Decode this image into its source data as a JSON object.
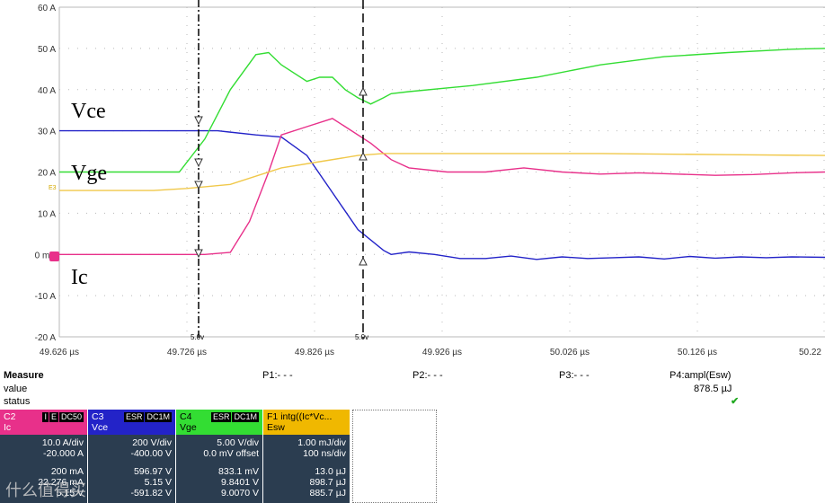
{
  "chart_data": {
    "type": "line",
    "xlabel": "",
    "ylabel": "",
    "x_ticks": [
      "49.626 µs",
      "49.726 µs",
      "49.826 µs",
      "49.926 µs",
      "50.026 µs",
      "50.126 µs",
      "50.22"
    ],
    "y_ticks": [
      "60 A",
      "50 A",
      "40 A",
      "30 A",
      "20 A",
      "10 A",
      "0 mA",
      "-10 A",
      "-20 A"
    ],
    "xlim": [
      49.626,
      50.226
    ],
    "ylim": [
      -20,
      60
    ],
    "grid": true,
    "series": [
      {
        "name": "Vce",
        "color": "#2323c8",
        "x": [
          49.626,
          49.7,
          49.75,
          49.78,
          49.8,
          49.82,
          49.84,
          49.86,
          49.88,
          49.886,
          49.9,
          49.92,
          49.94,
          49.96,
          49.98,
          50.0,
          50.02,
          50.04,
          50.06,
          50.08,
          50.1,
          50.12,
          50.14,
          50.16,
          50.18,
          50.2,
          50.226
        ],
        "y": [
          30,
          30,
          30,
          29,
          28.5,
          24,
          15,
          6,
          1,
          0,
          0.6,
          0,
          -1,
          -1,
          -0.4,
          -1.2,
          -0.6,
          -1,
          -0.8,
          -0.6,
          -1.1,
          -0.5,
          -0.9,
          -0.6,
          -0.8,
          -0.6,
          -0.7
        ]
      },
      {
        "name": "Vge",
        "color": "#33dd33",
        "x": [
          49.626,
          49.7,
          49.72,
          49.74,
          49.76,
          49.78,
          49.79,
          49.8,
          49.82,
          49.83,
          49.84,
          49.85,
          49.86,
          49.87,
          49.88,
          49.886,
          49.9,
          49.95,
          50.0,
          50.05,
          50.1,
          50.15,
          50.2,
          50.226
        ],
        "y": [
          20,
          20,
          20,
          28,
          40,
          48.5,
          49,
          46,
          42,
          43,
          43,
          40,
          38,
          36.5,
          38,
          39,
          39.5,
          41,
          43,
          46,
          48,
          49,
          49.8,
          50
        ]
      },
      {
        "name": "Ic",
        "color": "#e8308a",
        "x": [
          49.626,
          49.7,
          49.74,
          49.76,
          49.775,
          49.79,
          49.8,
          49.82,
          49.84,
          49.85,
          49.87,
          49.886,
          49.9,
          49.93,
          49.96,
          49.99,
          50.02,
          50.05,
          50.08,
          50.11,
          50.14,
          50.17,
          50.2,
          50.226
        ],
        "y": [
          0,
          0,
          0,
          0.5,
          8,
          20,
          29,
          31,
          33,
          31,
          27,
          23,
          21,
          20,
          20,
          21,
          20,
          19.5,
          19.8,
          19.5,
          19.2,
          19.4,
          19.8,
          20
        ]
      },
      {
        "name": "Esw",
        "color": "#f0c84a",
        "x": [
          49.626,
          49.7,
          49.726,
          49.76,
          49.8,
          49.83,
          49.86,
          49.88,
          49.886,
          49.95,
          50.05,
          50.15,
          50.226
        ],
        "y": [
          15.5,
          15.5,
          16,
          17,
          21,
          22.5,
          24,
          24.5,
          24.5,
          24.5,
          24.5,
          24.2,
          24
        ]
      }
    ],
    "annotations": [
      "Vce",
      "Vge",
      "Ic",
      "E3"
    ],
    "cursor_labels": [
      "5.0v",
      "5.0v"
    ]
  },
  "measure": {
    "title": "Measure",
    "row_value": "value",
    "row_status": "status",
    "p1": "P1:- - -",
    "p2": "P2:- - -",
    "p3": "P3:- - -",
    "p4": "P4:ampl(Esw)",
    "p4_value": "878.5 µJ",
    "p4_status": "✔"
  },
  "channels": [
    {
      "id": "C2",
      "name": "Ic",
      "badges": [
        "I",
        "E",
        "DC50"
      ],
      "color": "#e8308a",
      "lines": [
        "10.0 A/div",
        "-20.000 A",
        "200 mA",
        "22.276 mA",
        "5.15 V"
      ]
    },
    {
      "id": "C3",
      "name": "Vce",
      "badges": [
        "ESR",
        "DC1M"
      ],
      "color": "#2323c8",
      "lines": [
        "200 V/div",
        "-400.00 V",
        "596.97 V",
        "5.15 V",
        "-591.82 V"
      ]
    },
    {
      "id": "C4",
      "name": "Vge",
      "badges": [
        "ESR",
        "DC1M"
      ],
      "color": "#33dd33",
      "lines": [
        "5.00 V/div",
        "0.0 mV offset",
        "833.1 mV",
        "9.8401 V",
        "9.0070 V"
      ]
    },
    {
      "id": "F1",
      "name": "Esw",
      "formula": "intg((Ic*Vc...",
      "color": "#f0b800",
      "lines": [
        "1.00 mJ/div",
        "100 ns/div",
        "13.0 µJ",
        "898.7 µJ",
        "885.7 µJ"
      ]
    }
  ],
  "watermark": "什么值得买"
}
